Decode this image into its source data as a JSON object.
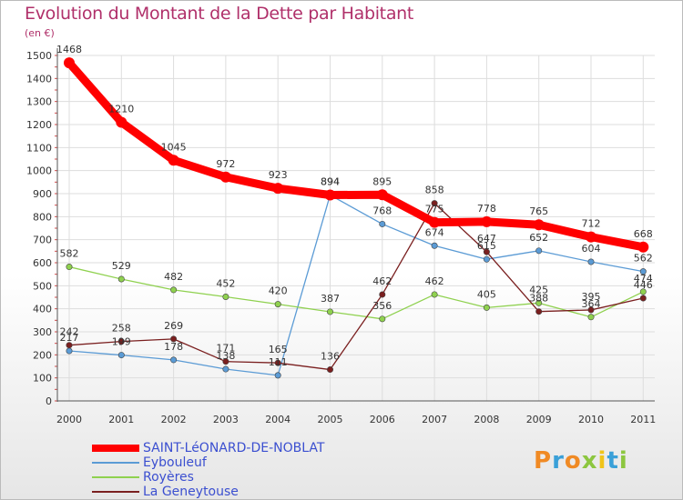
{
  "title": "Evolution du Montant de la Dette par Habitant",
  "unit": "(en €)",
  "logo": "Proxiti",
  "chart_data": {
    "type": "line",
    "title": "Evolution du Montant de la Dette par Habitant",
    "ylabel": "(en €)",
    "xlabel": "",
    "ylim": [
      0,
      1500
    ],
    "yticks": [
      0,
      100,
      200,
      300,
      400,
      500,
      600,
      700,
      800,
      900,
      1000,
      1100,
      1200,
      1300,
      1400,
      1500
    ],
    "grid": true,
    "legend_position": "bottom-left",
    "x": [
      "2000",
      "2001",
      "2002",
      "2003",
      "2004",
      "2005",
      "2006",
      "2007",
      "2008",
      "2009",
      "2010",
      "2011"
    ],
    "series": [
      {
        "name": "SAINT-LéONARD-DE-NOBLAT",
        "color": "#ff0000",
        "values": [
          1468,
          1210,
          1045,
          972,
          923,
          894,
          895,
          775,
          778,
          765,
          712,
          668
        ]
      },
      {
        "name": "Eybouleuf",
        "color": "#5b9bd5",
        "values": [
          217,
          199,
          178,
          138,
          111,
          894,
          768,
          674,
          615,
          652,
          604,
          562
        ]
      },
      {
        "name": "Royères",
        "color": "#8fd14f",
        "values": [
          582,
          529,
          482,
          452,
          420,
          387,
          356,
          462,
          405,
          425,
          364,
          474
        ]
      },
      {
        "name": "La Geneytouse",
        "color": "#7a1f1f",
        "values": [
          242,
          258,
          269,
          171,
          165,
          136,
          462,
          858,
          647,
          388,
          395,
          446
        ]
      }
    ]
  }
}
